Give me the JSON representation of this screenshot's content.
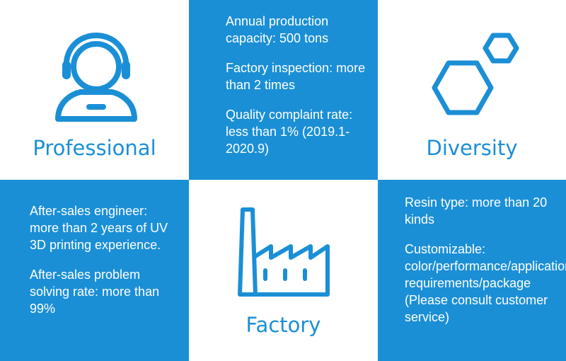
{
  "colors": {
    "accent": "#1b8fd6",
    "background": "#ffffff"
  },
  "professional": {
    "title": "Professional",
    "icon": "headset-person-icon"
  },
  "factory_stats": {
    "lines": [
      "Annual production capacity: 500 tons",
      "Factory inspection: more than 2 times",
      "Quality complaint rate: less than 1% (2019.1-2020.9)"
    ]
  },
  "diversity": {
    "title": "Diversity",
    "icon": "hexagons-icon"
  },
  "aftersales": {
    "lines": [
      "After-sales engineer: more than 2 years of UV 3D printing experience.",
      "After-sales problem solving rate: more than 99%"
    ]
  },
  "factory": {
    "title": "Factory",
    "icon": "factory-icon"
  },
  "resin": {
    "lines": [
      "Resin type: more than 20 kinds",
      "Customizable: color/performance/application requirements/package (Please consult customer service)"
    ]
  }
}
